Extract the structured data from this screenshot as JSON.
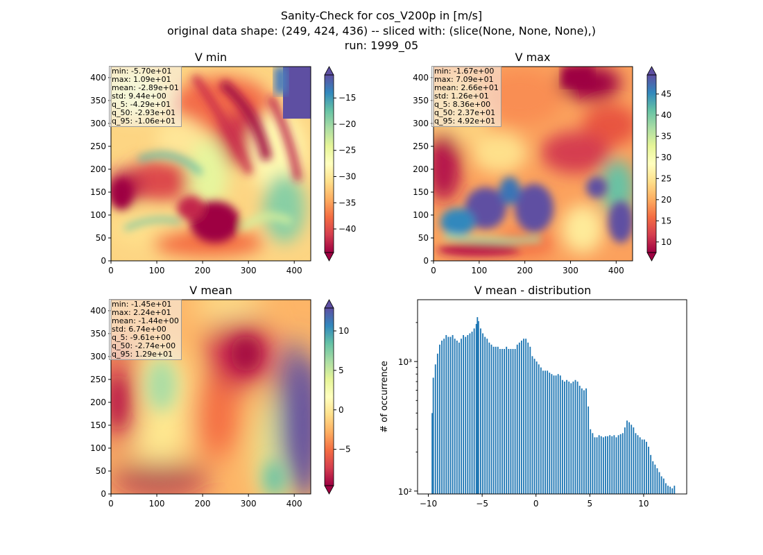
{
  "figure": {
    "title_lines": [
      "Sanity-Check for cos_V200p in [m/s]",
      "original data shape: (249, 424, 436) -- sliced with: (slice(None, None, None),)",
      "run: 1999_05"
    ]
  },
  "chart_data": [
    {
      "type": "heatmap",
      "title": "V min",
      "colormap": "Spectral",
      "xlim": [
        0,
        436
      ],
      "ylim": [
        0,
        424
      ],
      "xticks": [
        0,
        100,
        200,
        300,
        400
      ],
      "yticks": [
        0,
        50,
        100,
        150,
        200,
        250,
        300,
        350,
        400
      ],
      "colorbar": {
        "vmin": -44.5,
        "vmax": -10.6,
        "ticks": [
          -40,
          -35,
          -30,
          -25,
          -20,
          -15
        ],
        "tick_labels": [
          "−40",
          "−35",
          "−30",
          "−25",
          "−20",
          "−15"
        ],
        "extend": "both"
      },
      "stats": [
        "min: -5.70e+01",
        "max: 1.09e+01",
        "mean: -2.89e+01",
        "std: 9.44e+00",
        "q_5: -4.29e+01",
        "q_50: -2.93e+01",
        "q_95: -1.06e+01"
      ]
    },
    {
      "type": "heatmap",
      "title": "V max",
      "colormap": "Spectral",
      "xlim": [
        0,
        436
      ],
      "ylim": [
        0,
        424
      ],
      "xticks": [
        0,
        100,
        200,
        300,
        400
      ],
      "yticks": [
        0,
        50,
        100,
        150,
        200,
        250,
        300,
        350,
        400
      ],
      "colorbar": {
        "vmin": 7.5,
        "vmax": 49.5,
        "ticks": [
          10,
          15,
          20,
          25,
          30,
          35,
          40,
          45
        ],
        "tick_labels": [
          "10",
          "15",
          "20",
          "25",
          "30",
          "35",
          "40",
          "45"
        ],
        "extend": "both"
      },
      "stats": [
        "min: -1.67e+00",
        "max: 7.09e+01",
        "mean: 2.66e+01",
        "std: 1.26e+01",
        "q_5: 8.36e+00",
        "q_50: 2.37e+01",
        "q_95: 4.92e+01"
      ]
    },
    {
      "type": "heatmap",
      "title": "V mean",
      "colormap": "Spectral",
      "xlim": [
        0,
        436
      ],
      "ylim": [
        0,
        424
      ],
      "xticks": [
        0,
        100,
        200,
        300,
        400
      ],
      "yticks": [
        0,
        50,
        100,
        150,
        200,
        250,
        300,
        350,
        400
      ],
      "colorbar": {
        "vmin": -9.6,
        "vmax": 12.9,
        "ticks": [
          -5,
          0,
          5,
          10
        ],
        "tick_labels": [
          "−5",
          "0",
          "5",
          "10"
        ],
        "extend": "both"
      },
      "stats": [
        "min: -1.45e+01",
        "max: 2.24e+01",
        "mean: -1.44e+00",
        "std: 6.74e+00",
        "q_5: -9.61e+00",
        "q_50: -2.74e+00",
        "q_95: 1.29e+01"
      ]
    },
    {
      "type": "bar",
      "title": "V mean - distribution",
      "ylabel": "# of occurrence",
      "yscale": "log",
      "xlim": [
        -11,
        14
      ],
      "ylim": [
        95,
        3000
      ],
      "xticks": [
        -10,
        -5,
        0,
        5,
        10
      ],
      "xtick_labels": [
        "−10",
        "−5",
        "0",
        "5",
        "10"
      ],
      "yticks": [
        100,
        1000
      ],
      "ytick_labels": [
        "10²",
        "10³"
      ],
      "bar_color": "#1f77b4",
      "bin_width": 0.1,
      "bins": [
        [
          -9.7,
          400
        ],
        [
          -9.6,
          750
        ],
        [
          -9.4,
          950
        ],
        [
          -9.2,
          1150
        ],
        [
          -9.0,
          1350
        ],
        [
          -8.8,
          1450
        ],
        [
          -8.6,
          1500
        ],
        [
          -8.4,
          1600
        ],
        [
          -8.2,
          1550
        ],
        [
          -8.0,
          1550
        ],
        [
          -7.8,
          1600
        ],
        [
          -7.6,
          1500
        ],
        [
          -7.4,
          1450
        ],
        [
          -7.2,
          1400
        ],
        [
          -7.0,
          1500
        ],
        [
          -6.8,
          1600
        ],
        [
          -6.6,
          1550
        ],
        [
          -6.4,
          1600
        ],
        [
          -6.2,
          1650
        ],
        [
          -6.0,
          1700
        ],
        [
          -5.8,
          1800
        ],
        [
          -5.6,
          1950
        ],
        [
          -5.5,
          2200
        ],
        [
          -5.4,
          2050
        ],
        [
          -5.2,
          1800
        ],
        [
          -5.0,
          1650
        ],
        [
          -4.8,
          1550
        ],
        [
          -4.6,
          1500
        ],
        [
          -4.4,
          1400
        ],
        [
          -4.2,
          1350
        ],
        [
          -4.0,
          1300
        ],
        [
          -3.8,
          1300
        ],
        [
          -3.6,
          1300
        ],
        [
          -3.4,
          1250
        ],
        [
          -3.2,
          1250
        ],
        [
          -3.0,
          1250
        ],
        [
          -2.8,
          1300
        ],
        [
          -2.6,
          1250
        ],
        [
          -2.4,
          1250
        ],
        [
          -2.2,
          1250
        ],
        [
          -2.0,
          1250
        ],
        [
          -1.8,
          1350
        ],
        [
          -1.6,
          1400
        ],
        [
          -1.4,
          1450
        ],
        [
          -1.2,
          1500
        ],
        [
          -1.0,
          1500
        ],
        [
          -0.8,
          1400
        ],
        [
          -0.6,
          1300
        ],
        [
          -0.4,
          1100
        ],
        [
          -0.2,
          1050
        ],
        [
          0.0,
          1000
        ],
        [
          0.2,
          950
        ],
        [
          0.4,
          900
        ],
        [
          0.6,
          850
        ],
        [
          0.8,
          850
        ],
        [
          1.0,
          850
        ],
        [
          1.2,
          820
        ],
        [
          1.4,
          800
        ],
        [
          1.6,
          780
        ],
        [
          1.8,
          780
        ],
        [
          2.0,
          800
        ],
        [
          2.2,
          780
        ],
        [
          2.4,
          720
        ],
        [
          2.6,
          700
        ],
        [
          2.8,
          720
        ],
        [
          3.0,
          700
        ],
        [
          3.2,
          680
        ],
        [
          3.4,
          700
        ],
        [
          3.6,
          720
        ],
        [
          3.8,
          700
        ],
        [
          4.0,
          650
        ],
        [
          4.2,
          620
        ],
        [
          4.4,
          600
        ],
        [
          4.6,
          620
        ],
        [
          4.8,
          450
        ],
        [
          5.0,
          300
        ],
        [
          5.2,
          280
        ],
        [
          5.4,
          260
        ],
        [
          5.6,
          260
        ],
        [
          5.8,
          270
        ],
        [
          6.0,
          265
        ],
        [
          6.2,
          260
        ],
        [
          6.4,
          265
        ],
        [
          6.6,
          265
        ],
        [
          6.8,
          270
        ],
        [
          7.0,
          265
        ],
        [
          7.2,
          270
        ],
        [
          7.4,
          260
        ],
        [
          7.6,
          270
        ],
        [
          7.8,
          275
        ],
        [
          8.0,
          280
        ],
        [
          8.2,
          310
        ],
        [
          8.4,
          350
        ],
        [
          8.6,
          340
        ],
        [
          8.8,
          325
        ],
        [
          9.0,
          310
        ],
        [
          9.2,
          280
        ],
        [
          9.4,
          270
        ],
        [
          9.6,
          260
        ],
        [
          9.8,
          250
        ],
        [
          10.0,
          250
        ],
        [
          10.2,
          240
        ],
        [
          10.4,
          220
        ],
        [
          10.6,
          190
        ],
        [
          10.8,
          170
        ],
        [
          11.0,
          160
        ],
        [
          11.2,
          150
        ],
        [
          11.4,
          140
        ],
        [
          11.6,
          130
        ],
        [
          11.8,
          125
        ],
        [
          12.0,
          115
        ],
        [
          12.2,
          110
        ],
        [
          12.4,
          108
        ],
        [
          12.6,
          105
        ],
        [
          12.8,
          110
        ]
      ]
    }
  ]
}
